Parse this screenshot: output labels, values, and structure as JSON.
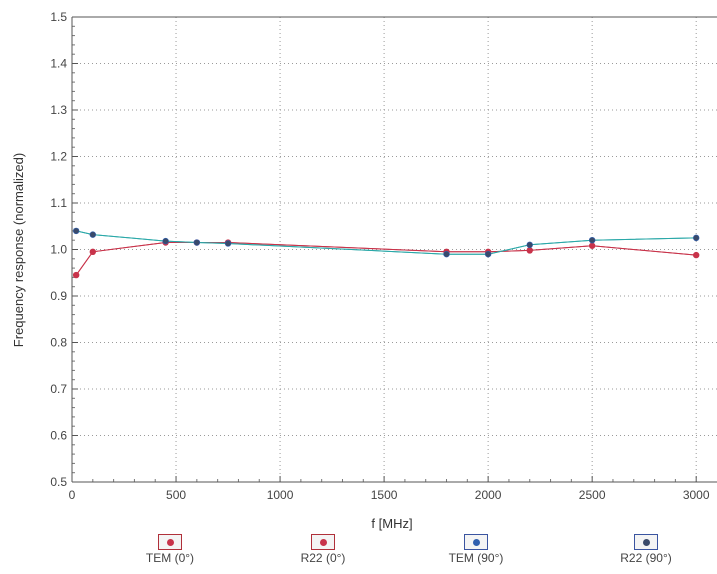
{
  "chart_data": {
    "type": "line",
    "xlabel": "f [MHz]",
    "ylabel": "Frequency response (normalized)",
    "xlim": [
      0,
      3100
    ],
    "ylim": [
      0.5,
      1.5
    ],
    "x_ticks": [
      "0",
      "500",
      "1000",
      "1500",
      "2000",
      "2500",
      "3000"
    ],
    "y_ticks": [
      "0.5",
      "0.6",
      "0.7",
      "0.8",
      "0.9",
      "1.0",
      "1.1",
      "1.2",
      "1.3",
      "1.4",
      "1.5"
    ],
    "grid": true,
    "legend_position": "bottom",
    "series": [
      {
        "name": "TEM (0°)",
        "color": "#c8334a",
        "x": [
          20,
          100,
          450,
          600,
          750,
          1800,
          2000,
          2200,
          2500,
          3000
        ],
        "y": [
          0.945,
          0.995,
          1.015,
          1.015,
          1.015,
          0.995,
          0.995,
          0.998,
          1.008,
          0.988
        ]
      },
      {
        "name": "R22 (0°)",
        "color": "#c8334a",
        "x": [
          20,
          100,
          450,
          600,
          750,
          1800,
          2000,
          2200,
          2500,
          3000
        ],
        "y": [
          0.945,
          0.995,
          1.015,
          1.015,
          1.015,
          0.995,
          0.995,
          0.998,
          1.008,
          0.988
        ]
      },
      {
        "name": "TEM (90°)",
        "color": "#2f5fae",
        "x": [
          20,
          100,
          450,
          600,
          750,
          1800,
          2000,
          2200,
          2500,
          3000
        ],
        "y": [
          1.04,
          1.032,
          1.018,
          1.015,
          1.013,
          0.99,
          0.99,
          1.01,
          1.02,
          1.025
        ]
      },
      {
        "name": "R22 (90°)",
        "color": "#3a4a6a",
        "x": [
          20,
          100,
          450,
          600,
          750,
          1800,
          2000,
          2200,
          2500,
          3000
        ],
        "y": [
          1.04,
          1.032,
          1.018,
          1.015,
          1.013,
          0.99,
          0.99,
          1.01,
          1.02,
          1.025
        ]
      }
    ],
    "line_colors": [
      "#c8334a",
      "#2aa8a8"
    ]
  }
}
